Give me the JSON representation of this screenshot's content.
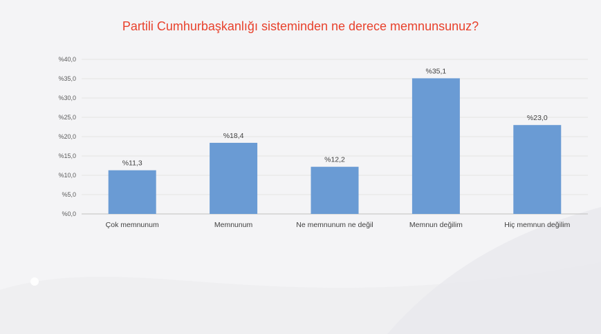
{
  "chart_data": {
    "type": "bar",
    "title": "Partili Cumhurbaşkanlığı sisteminden ne derece memnunsunuz?",
    "categories": [
      "Çok memnunum",
      "Memnunum",
      "Ne memnunum ne değil",
      "Memnun değilim",
      "Hiç memnun değilim"
    ],
    "values": [
      11.3,
      18.4,
      12.2,
      35.1,
      23.0
    ],
    "data_labels": [
      "%11,3",
      "%18,4",
      "%12,2",
      "%35,1",
      "%23,0"
    ],
    "y_ticks": [
      "%0,0",
      "%5,0",
      "%10,0",
      "%15,0",
      "%20,0",
      "%25,0",
      "%30,0",
      "%35,0",
      "%40,0"
    ],
    "ylim": [
      0,
      40
    ],
    "grid": true,
    "bar_color": "#6a9bd4",
    "title_color": "#e8412c"
  }
}
